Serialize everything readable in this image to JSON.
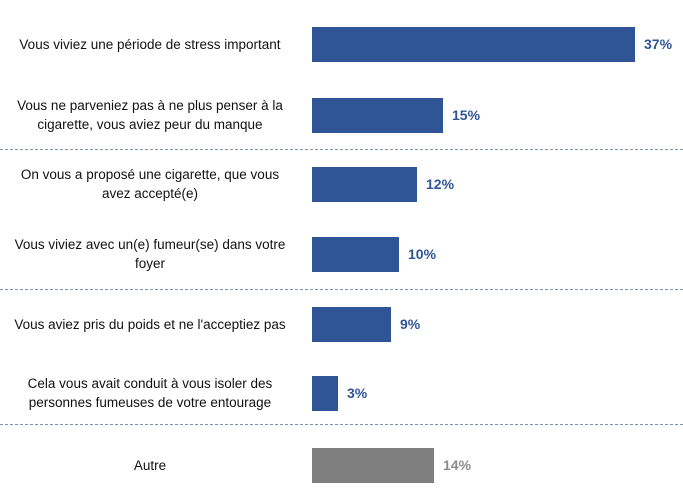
{
  "chart_data": {
    "type": "bar",
    "orientation": "horizontal",
    "categories": [
      "Vous viviez une période de stress important",
      "Vous ne parveniez pas à ne plus penser à la cigarette, vous aviez peur du manque",
      "On vous a proposé une cigarette, que vous avez accepté(e)",
      "Vous viviez avec un(e) fumeur(se) dans votre foyer",
      "Vous aviez pris du poids et ne l'acceptiez pas",
      "Cela vous avait conduit à vous isoler des personnes fumeuses de votre entourage",
      "Autre"
    ],
    "label_lines": [
      [
        "Vous viviez une période de stress important"
      ],
      [
        "Vous ne parveniez pas à ne plus penser à la",
        "cigarette, vous aviez peur du manque"
      ],
      [
        "On vous a proposé une cigarette, que vous",
        "avez accepté(e)"
      ],
      [
        "Vous viviez avec un(e) fumeur(se) dans votre",
        "foyer"
      ],
      [
        "Vous aviez pris du poids et ne l'acceptiez pas"
      ],
      [
        "Cela vous avait conduit à vous isoler des",
        "personnes fumeuses de votre entourage"
      ],
      [
        "Autre"
      ]
    ],
    "values": [
      37,
      15,
      12,
      10,
      9,
      3,
      14
    ],
    "value_labels": [
      "37%",
      "15%",
      "12%",
      "10%",
      "9%",
      "3%",
      "14%"
    ],
    "unit": "%",
    "xlim": [
      0,
      37
    ],
    "bar_colors": [
      "#2f5597",
      "#2f5597",
      "#2f5597",
      "#2f5597",
      "#2f5597",
      "#2f5597",
      "#7f7f7f"
    ],
    "label_colors": [
      "#2f5597",
      "#2f5597",
      "#2f5597",
      "#2f5597",
      "#2f5597",
      "#2f5597",
      "#8c8c8c"
    ],
    "separator_color": "#7f93b2",
    "separators_after_index": [
      1,
      3,
      5
    ],
    "title": "",
    "xlabel": "",
    "ylabel": "",
    "grid": false,
    "legend": "none"
  }
}
